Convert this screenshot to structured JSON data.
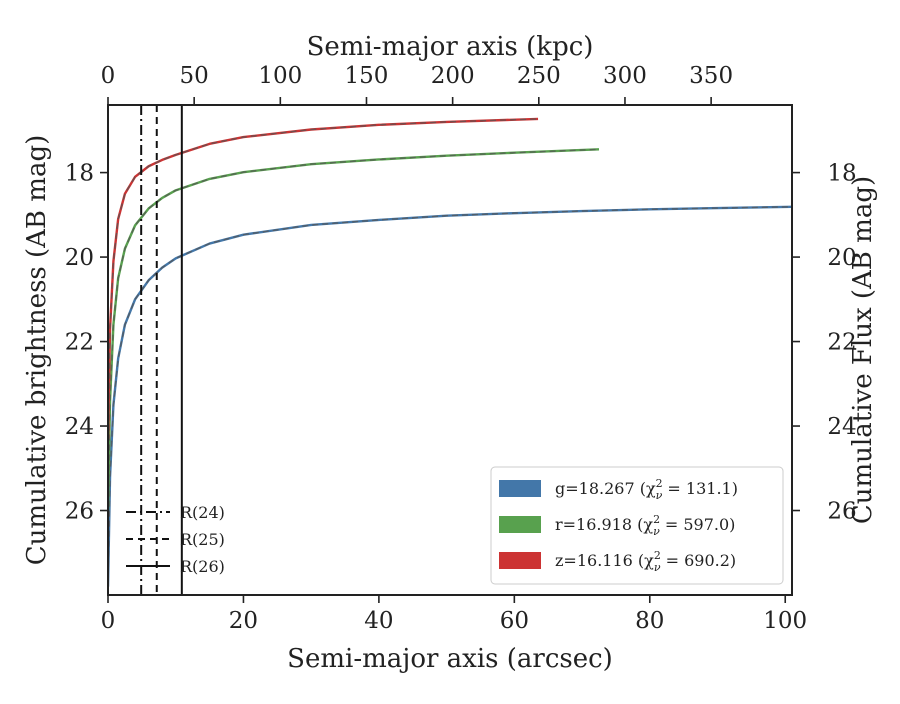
{
  "chart_data": {
    "type": "line",
    "title": "",
    "xlabel": "Semi-major axis (arcsec)",
    "ylabel": "Cumulative brightness (AB mag)",
    "ylabel_right": "Cumulative Flux (AB mag)",
    "xlabel_top": "Semi-major axis (kpc)",
    "xlim": [
      0,
      101
    ],
    "ylim": [
      28.0,
      16.4
    ],
    "y_inverted": true,
    "x_ticks": [
      0,
      20,
      40,
      60,
      80,
      100
    ],
    "x_tick_labels": [
      "0",
      "20",
      "40",
      "60",
      "80",
      "100"
    ],
    "y_ticks": [
      18,
      20,
      22,
      24,
      26
    ],
    "y_tick_labels": [
      "18",
      "20",
      "22",
      "24",
      "26"
    ],
    "top_ticks_kpc": [
      0,
      50,
      100,
      150,
      200,
      250,
      300,
      350
    ],
    "top_tick_labels": [
      "0",
      "50",
      "100",
      "150",
      "200",
      "250",
      "300",
      "350"
    ],
    "kpc_per_arcsec": 3.93,
    "reference_lines": [
      {
        "name": "R(24)",
        "x": 4.9,
        "style": "dashdot"
      },
      {
        "name": "R(25)",
        "x": 7.2,
        "style": "dashed"
      },
      {
        "name": "R(26)",
        "x": 10.9,
        "style": "solid"
      }
    ],
    "series": [
      {
        "name": "g",
        "label": "g=18.267 (χ²ᵥ = 131.1)",
        "legend_main": "g=18.267 (",
        "legend_sub": "ν",
        "legend_tail": " = 131.1)",
        "color": "#4377a9",
        "x": [
          0,
          0.3,
          0.8,
          1.5,
          2.5,
          4,
          6,
          8,
          10,
          15,
          20,
          30,
          40,
          50,
          60,
          70,
          80,
          90,
          101
        ],
        "y": [
          27.8,
          25.2,
          23.5,
          22.4,
          21.6,
          21.0,
          20.55,
          20.25,
          20.03,
          19.68,
          19.47,
          19.24,
          19.12,
          19.02,
          18.96,
          18.91,
          18.87,
          18.84,
          18.81
        ]
      },
      {
        "name": "r",
        "label": "r=16.918 (χ²ᵥ = 597.0)",
        "legend_main": "r=16.918 (",
        "legend_sub": "ν",
        "legend_tail": " = 597.0)",
        "color": "#58a14e",
        "x": [
          0,
          0.3,
          0.8,
          1.5,
          2.5,
          4,
          6,
          8,
          10,
          15,
          20,
          30,
          40,
          50,
          60,
          72.5
        ],
        "y": [
          26.0,
          23.4,
          21.6,
          20.5,
          19.8,
          19.25,
          18.85,
          18.6,
          18.42,
          18.15,
          17.99,
          17.8,
          17.69,
          17.6,
          17.53,
          17.45
        ]
      },
      {
        "name": "z",
        "label": "z=16.116 (χ²ᵥ = 690.2)",
        "legend_main": "z=16.116 (",
        "legend_sub": "ν",
        "legend_tail": " = 690.2)",
        "color": "#cc3333",
        "x": [
          0,
          0.3,
          0.8,
          1.5,
          2.5,
          4,
          6,
          8,
          10,
          15,
          20,
          30,
          40,
          50,
          63.5
        ],
        "y": [
          24.3,
          21.7,
          20.1,
          19.1,
          18.5,
          18.1,
          17.85,
          17.7,
          17.58,
          17.32,
          17.16,
          16.98,
          16.87,
          16.8,
          16.73
        ]
      }
    ],
    "legend_position": "lower-right",
    "ref_legend_position": "lower-left"
  }
}
